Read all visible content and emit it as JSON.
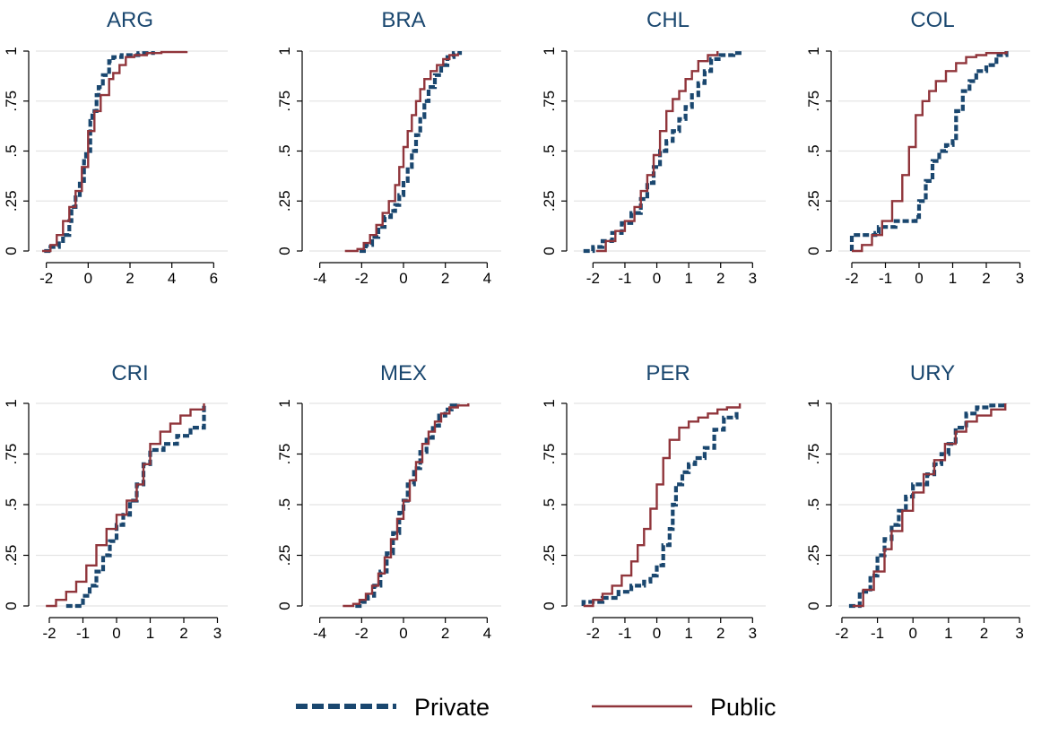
{
  "colors": {
    "private": "#1a476f",
    "public": "#90353b",
    "grid": "#e4e4e4",
    "axis": "#000000"
  },
  "legend": {
    "position": "bottom",
    "items": [
      {
        "series": "Private",
        "label": "Private",
        "style": "dashed"
      },
      {
        "series": "Public",
        "label": "Public",
        "style": "solid"
      }
    ]
  },
  "chart_data": [
    {
      "type": "line",
      "title": "ARG",
      "xlabel": "",
      "ylabel": "",
      "xlim": [
        -2.5,
        6.5
      ],
      "ylim": [
        0,
        1
      ],
      "xticks": [
        -2,
        0,
        2,
        4,
        6
      ],
      "xtick_labels": [
        "-2",
        "0",
        "2",
        "4",
        "6"
      ],
      "yticks": [
        0,
        0.25,
        0.5,
        0.75,
        1
      ],
      "ytick_labels": [
        "0",
        ".25",
        ".5",
        ".75",
        "1"
      ],
      "grid": true,
      "series": [
        {
          "name": "Private",
          "x": [
            -2.1,
            -1.8,
            -1.4,
            -1.2,
            -0.9,
            -0.8,
            -0.6,
            -0.4,
            -0.2,
            -0.1,
            0.1,
            0.2,
            0.4,
            0.5,
            0.7,
            1.0,
            1.2,
            1.6,
            2.0,
            2.4,
            3.1
          ],
          "y": [
            0.0,
            0.02,
            0.05,
            0.08,
            0.15,
            0.22,
            0.28,
            0.35,
            0.45,
            0.5,
            0.65,
            0.7,
            0.78,
            0.82,
            0.88,
            0.95,
            0.97,
            0.98,
            0.98,
            0.99,
            1.0
          ]
        },
        {
          "name": "Public",
          "x": [
            -2.2,
            -1.8,
            -1.5,
            -1.2,
            -0.9,
            -0.6,
            -0.3,
            0.0,
            0.3,
            0.6,
            1.0,
            1.2,
            1.5,
            1.8,
            2.2,
            2.8,
            3.5,
            4.7
          ],
          "y": [
            0.0,
            0.03,
            0.08,
            0.15,
            0.22,
            0.3,
            0.42,
            0.6,
            0.7,
            0.78,
            0.86,
            0.89,
            0.93,
            0.97,
            0.98,
            0.99,
            0.995,
            1.0
          ]
        }
      ]
    },
    {
      "type": "line",
      "title": "BRA",
      "xlabel": "",
      "ylabel": "",
      "xlim": [
        -4.5,
        4.5
      ],
      "ylim": [
        0,
        1
      ],
      "xticks": [
        -4,
        -2,
        0,
        2,
        4
      ],
      "xtick_labels": [
        "-4",
        "-2",
        "0",
        "2",
        "4"
      ],
      "yticks": [
        0,
        0.25,
        0.5,
        0.75,
        1
      ],
      "ytick_labels": [
        "0",
        ".25",
        ".5",
        ".75",
        "1"
      ],
      "grid": true,
      "series": [
        {
          "name": "Private",
          "x": [
            -2.1,
            -1.8,
            -1.5,
            -1.2,
            -0.9,
            -0.6,
            -0.4,
            -0.2,
            0.0,
            0.2,
            0.4,
            0.6,
            0.8,
            1.0,
            1.2,
            1.5,
            1.8,
            2.1,
            2.4,
            2.7
          ],
          "y": [
            0.0,
            0.03,
            0.07,
            0.12,
            0.17,
            0.2,
            0.23,
            0.28,
            0.35,
            0.42,
            0.5,
            0.58,
            0.67,
            0.75,
            0.82,
            0.88,
            0.93,
            0.97,
            0.99,
            1.0
          ]
        },
        {
          "name": "Public",
          "x": [
            -2.8,
            -2.2,
            -1.9,
            -1.6,
            -1.3,
            -1.0,
            -0.7,
            -0.4,
            -0.2,
            0.0,
            0.2,
            0.4,
            0.6,
            0.8,
            1.0,
            1.3,
            1.6,
            1.9,
            2.2,
            2.6
          ],
          "y": [
            0.0,
            0.01,
            0.04,
            0.08,
            0.13,
            0.19,
            0.25,
            0.33,
            0.42,
            0.52,
            0.6,
            0.68,
            0.75,
            0.81,
            0.86,
            0.9,
            0.93,
            0.96,
            0.98,
            0.99
          ]
        }
      ]
    },
    {
      "type": "line",
      "title": "CHL",
      "xlabel": "",
      "ylabel": "",
      "xlim": [
        -2.6,
        3.3
      ],
      "ylim": [
        0,
        1
      ],
      "xticks": [
        -2,
        -1,
        0,
        1,
        2,
        3
      ],
      "xtick_labels": [
        "-2",
        "-1",
        "0",
        "1",
        "2",
        "3"
      ],
      "yticks": [
        0,
        0.25,
        0.5,
        0.75,
        1
      ],
      "ytick_labels": [
        "0",
        ".25",
        ".5",
        ".75",
        "1"
      ],
      "grid": true,
      "series": [
        {
          "name": "Private",
          "x": [
            -2.3,
            -2.0,
            -1.7,
            -1.4,
            -1.1,
            -0.8,
            -0.5,
            -0.3,
            -0.1,
            0.1,
            0.3,
            0.5,
            0.7,
            0.9,
            1.1,
            1.3,
            1.5,
            1.7,
            2.0,
            2.4,
            2.7
          ],
          "y": [
            0.0,
            0.02,
            0.05,
            0.09,
            0.14,
            0.19,
            0.26,
            0.34,
            0.42,
            0.5,
            0.55,
            0.6,
            0.66,
            0.72,
            0.78,
            0.84,
            0.9,
            0.96,
            0.98,
            0.99,
            0.99
          ]
        },
        {
          "name": "Public",
          "x": [
            -1.9,
            -1.6,
            -1.3,
            -1.0,
            -0.7,
            -0.5,
            -0.3,
            -0.1,
            0.1,
            0.3,
            0.5,
            0.7,
            0.9,
            1.1,
            1.3,
            1.6,
            1.9
          ],
          "y": [
            0.0,
            0.05,
            0.1,
            0.15,
            0.22,
            0.3,
            0.38,
            0.48,
            0.6,
            0.7,
            0.76,
            0.8,
            0.86,
            0.9,
            0.95,
            0.98,
            1.0
          ]
        }
      ]
    },
    {
      "type": "line",
      "title": "COL",
      "xlabel": "",
      "ylabel": "",
      "xlim": [
        -2.4,
        3.2
      ],
      "ylim": [
        0,
        1
      ],
      "xticks": [
        -2,
        -1,
        0,
        1,
        2,
        3
      ],
      "xtick_labels": [
        "-2",
        "-1",
        "0",
        "1",
        "2",
        "3"
      ],
      "yticks": [
        0,
        0.25,
        0.5,
        0.75,
        1
      ],
      "ytick_labels": [
        "0",
        ".25",
        ".5",
        ".75",
        "1"
      ],
      "grid": true,
      "series": [
        {
          "name": "Private",
          "x": [
            -2.0,
            -2.0,
            -1.3,
            -1.2,
            -0.7,
            -0.1,
            0.0,
            0.2,
            0.4,
            0.6,
            0.8,
            1.0,
            1.1,
            1.3,
            1.5,
            1.7,
            2.0,
            2.3,
            2.6
          ],
          "y": [
            0.0,
            0.08,
            0.09,
            0.12,
            0.15,
            0.17,
            0.25,
            0.35,
            0.45,
            0.5,
            0.53,
            0.55,
            0.7,
            0.8,
            0.85,
            0.9,
            0.93,
            0.98,
            1.0
          ]
        },
        {
          "name": "Public",
          "x": [
            -2.0,
            -1.7,
            -1.4,
            -1.1,
            -0.8,
            -0.5,
            -0.3,
            -0.1,
            0.1,
            0.3,
            0.5,
            0.8,
            1.1,
            1.4,
            1.7,
            2.0,
            2.3,
            2.6
          ],
          "y": [
            0.0,
            0.03,
            0.08,
            0.15,
            0.25,
            0.38,
            0.52,
            0.68,
            0.75,
            0.8,
            0.85,
            0.9,
            0.94,
            0.97,
            0.98,
            0.99,
            0.99,
            1.0
          ]
        }
      ]
    },
    {
      "type": "line",
      "title": "CRI",
      "xlabel": "",
      "ylabel": "",
      "xlim": [
        -2.4,
        3.2
      ],
      "ylim": [
        0,
        1
      ],
      "xticks": [
        -2,
        -1,
        0,
        1,
        2,
        3
      ],
      "xtick_labels": [
        "-2",
        "-1",
        "0",
        "1",
        "2",
        "3"
      ],
      "yticks": [
        0,
        0.25,
        0.5,
        0.75,
        1
      ],
      "ytick_labels": [
        "0",
        ".25",
        ".5",
        ".75",
        "1"
      ],
      "grid": true,
      "series": [
        {
          "name": "Private",
          "x": [
            -1.5,
            -1.0,
            -0.8,
            -0.6,
            -0.4,
            -0.2,
            0.0,
            0.2,
            0.4,
            0.6,
            0.8,
            1.0,
            1.4,
            1.8,
            2.2,
            2.6,
            2.6
          ],
          "y": [
            0.0,
            0.05,
            0.1,
            0.17,
            0.25,
            0.32,
            0.4,
            0.45,
            0.52,
            0.6,
            0.7,
            0.77,
            0.8,
            0.84,
            0.88,
            0.92,
            1.0
          ]
        },
        {
          "name": "Public",
          "x": [
            -2.1,
            -1.8,
            -1.5,
            -1.2,
            -0.9,
            -0.6,
            -0.3,
            0.0,
            0.3,
            0.6,
            0.8,
            1.0,
            1.3,
            1.6,
            1.9,
            2.2,
            2.6
          ],
          "y": [
            0.0,
            0.03,
            0.07,
            0.12,
            0.2,
            0.3,
            0.38,
            0.45,
            0.52,
            0.6,
            0.7,
            0.8,
            0.86,
            0.9,
            0.94,
            0.97,
            1.0
          ]
        }
      ]
    },
    {
      "type": "line",
      "title": "MEX",
      "xlabel": "",
      "ylabel": "",
      "xlim": [
        -4.5,
        4.5
      ],
      "ylim": [
        0,
        1
      ],
      "xticks": [
        -4,
        -2,
        0,
        2,
        4
      ],
      "xtick_labels": [
        "-4",
        "-2",
        "0",
        "2",
        "4"
      ],
      "yticks": [
        0,
        0.25,
        0.5,
        0.75,
        1
      ],
      "ytick_labels": [
        "0",
        ".25",
        ".5",
        ".75",
        "1"
      ],
      "grid": true,
      "series": [
        {
          "name": "Private",
          "x": [
            -2.3,
            -2.0,
            -1.7,
            -1.4,
            -1.1,
            -0.8,
            -0.5,
            -0.2,
            0.0,
            0.2,
            0.5,
            0.8,
            1.1,
            1.4,
            1.7,
            2.0,
            2.3,
            2.6
          ],
          "y": [
            0.0,
            0.02,
            0.05,
            0.1,
            0.17,
            0.26,
            0.36,
            0.46,
            0.52,
            0.6,
            0.68,
            0.76,
            0.83,
            0.89,
            0.94,
            0.97,
            0.99,
            1.0
          ]
        },
        {
          "name": "Public",
          "x": [
            -2.9,
            -2.4,
            -2.1,
            -1.8,
            -1.5,
            -1.2,
            -0.9,
            -0.6,
            -0.3,
            0.0,
            0.3,
            0.6,
            0.9,
            1.2,
            1.5,
            1.8,
            2.2,
            2.6,
            3.1
          ],
          "y": [
            0.0,
            0.01,
            0.03,
            0.06,
            0.1,
            0.16,
            0.24,
            0.33,
            0.43,
            0.52,
            0.62,
            0.71,
            0.8,
            0.86,
            0.91,
            0.95,
            0.98,
            0.99,
            1.0
          ]
        }
      ]
    },
    {
      "type": "line",
      "title": "PER",
      "xlabel": "",
      "ylabel": "",
      "xlim": [
        -2.6,
        3.3
      ],
      "ylim": [
        0,
        1
      ],
      "xticks": [
        -2,
        -1,
        0,
        1,
        2,
        3
      ],
      "xtick_labels": [
        "-2",
        "-1",
        "0",
        "1",
        "2",
        "3"
      ],
      "yticks": [
        0,
        0.25,
        0.5,
        0.75,
        1
      ],
      "ytick_labels": [
        "0",
        ".25",
        ".5",
        ".75",
        "1"
      ],
      "grid": true,
      "series": [
        {
          "name": "Private",
          "x": [
            -2.3,
            -2.3,
            -1.7,
            -1.2,
            -0.8,
            -0.4,
            -0.2,
            0.0,
            0.2,
            0.4,
            0.5,
            0.6,
            0.8,
            1.0,
            1.2,
            1.5,
            1.8,
            2.1,
            2.5
          ],
          "y": [
            0.0,
            0.02,
            0.04,
            0.07,
            0.1,
            0.12,
            0.15,
            0.2,
            0.3,
            0.38,
            0.5,
            0.6,
            0.66,
            0.7,
            0.73,
            0.78,
            0.87,
            0.93,
            0.97
          ]
        },
        {
          "name": "Public",
          "x": [
            -2.3,
            -2.0,
            -1.7,
            -1.4,
            -1.1,
            -0.8,
            -0.6,
            -0.4,
            -0.2,
            0.0,
            0.2,
            0.4,
            0.7,
            1.0,
            1.3,
            1.6,
            1.9,
            2.2,
            2.6
          ],
          "y": [
            0.0,
            0.03,
            0.06,
            0.1,
            0.15,
            0.22,
            0.3,
            0.38,
            0.48,
            0.6,
            0.73,
            0.82,
            0.88,
            0.91,
            0.93,
            0.95,
            0.97,
            0.98,
            1.0
          ]
        }
      ]
    },
    {
      "type": "line",
      "title": "URY",
      "xlabel": "",
      "ylabel": "",
      "xlim": [
        -2.1,
        3.2
      ],
      "ylim": [
        0,
        1
      ],
      "xticks": [
        -2,
        -1,
        0,
        1,
        2,
        3
      ],
      "xtick_labels": [
        "-2",
        "-1",
        "0",
        "1",
        "2",
        "3"
      ],
      "yticks": [
        0,
        0.25,
        0.5,
        0.75,
        1
      ],
      "ytick_labels": [
        "0",
        ".25",
        ".5",
        ".75",
        "1"
      ],
      "grid": true,
      "series": [
        {
          "name": "Private",
          "x": [
            -1.8,
            -1.5,
            -1.2,
            -1.0,
            -0.8,
            -0.6,
            -0.4,
            -0.2,
            0.0,
            0.2,
            0.4,
            0.6,
            0.8,
            1.0,
            1.2,
            1.5,
            1.8,
            2.2,
            2.6
          ],
          "y": [
            0.0,
            0.07,
            0.15,
            0.25,
            0.33,
            0.4,
            0.47,
            0.54,
            0.6,
            0.6,
            0.65,
            0.7,
            0.75,
            0.8,
            0.88,
            0.95,
            0.98,
            0.99,
            1.0
          ]
        },
        {
          "name": "Public",
          "x": [
            -1.7,
            -1.4,
            -1.1,
            -0.8,
            -0.6,
            -0.3,
            0.0,
            0.3,
            0.6,
            0.9,
            1.2,
            1.5,
            1.8,
            2.2,
            2.6
          ],
          "y": [
            0.0,
            0.08,
            0.17,
            0.28,
            0.37,
            0.47,
            0.56,
            0.65,
            0.72,
            0.8,
            0.86,
            0.91,
            0.94,
            0.97,
            1.0
          ]
        }
      ]
    }
  ]
}
